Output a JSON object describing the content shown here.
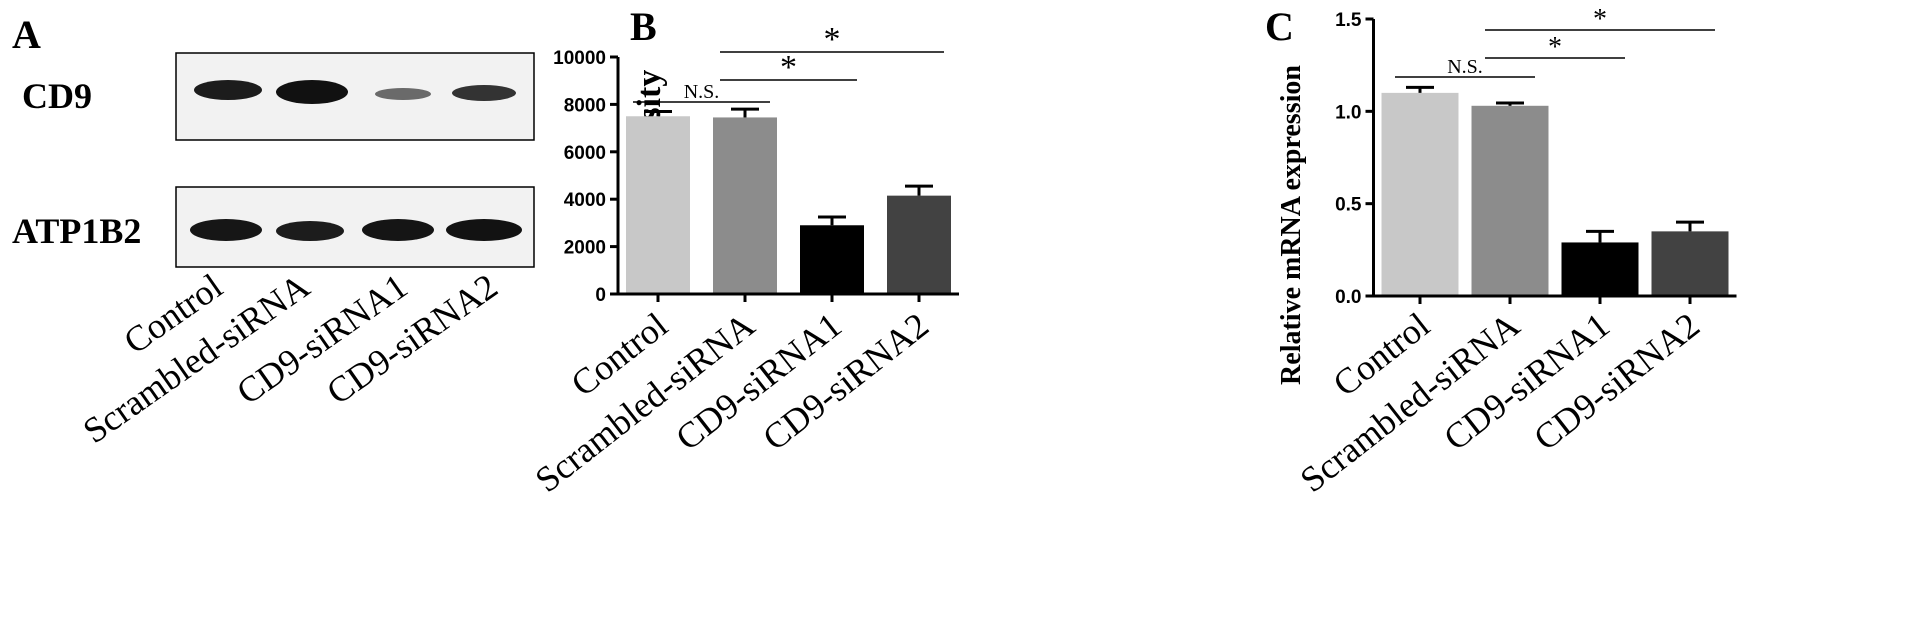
{
  "panels": {
    "a_label": "A",
    "b_label": "B",
    "c_label": "C"
  },
  "western_blot": {
    "rows": [
      "CD9",
      "ATP1B2"
    ],
    "lanes": [
      "Control",
      "Scrambled-siRNA",
      "CD9-siRNA1",
      "CD9-siRNA2"
    ]
  },
  "colors": {
    "bars": [
      "#c8c8c8",
      "#8c8c8c",
      "#000000",
      "#424242"
    ],
    "error": "#000000"
  },
  "chart_data": [
    {
      "type": "bar",
      "title": "",
      "xlabel": "",
      "ylabel": "Band intensity",
      "categories": [
        "Control",
        "Scrambled-siRNA",
        "CD9-siRNA1",
        "CD9-siRNA2"
      ],
      "values": [
        7500,
        7450,
        2900,
        4150
      ],
      "errors": [
        200,
        350,
        350,
        400
      ],
      "ylim": [
        0,
        10000
      ],
      "yticks": [
        0,
        2000,
        4000,
        6000,
        8000,
        10000
      ],
      "ytick_labels": [
        "0",
        "2000",
        "4000",
        "6000",
        "8000",
        "10000"
      ],
      "grid": false,
      "significance": [
        {
          "from": 0,
          "to": 1,
          "label": "N.S."
        },
        {
          "from": 1,
          "to": 2,
          "label": "*"
        },
        {
          "from": 1,
          "to": 3,
          "label": "*"
        }
      ]
    },
    {
      "type": "bar",
      "title": "",
      "xlabel": "",
      "ylabel": "Relative mRNA expression",
      "categories": [
        "Control",
        "Scrambled-siRNA",
        "CD9-siRNA1",
        "CD9-siRNA2"
      ],
      "values": [
        1.1,
        1.03,
        0.29,
        0.35
      ],
      "errors": [
        0.03,
        0.015,
        0.06,
        0.05
      ],
      "ylim": [
        0,
        1.5
      ],
      "yticks": [
        0,
        0.5,
        1.0,
        1.5
      ],
      "ytick_labels": [
        "0.0",
        "0.5",
        "1.0",
        "1.5"
      ],
      "grid": false,
      "significance": [
        {
          "from": 0,
          "to": 1,
          "label": "N.S."
        },
        {
          "from": 1,
          "to": 2,
          "label": "*"
        },
        {
          "from": 1,
          "to": 3,
          "label": "*"
        }
      ]
    }
  ]
}
